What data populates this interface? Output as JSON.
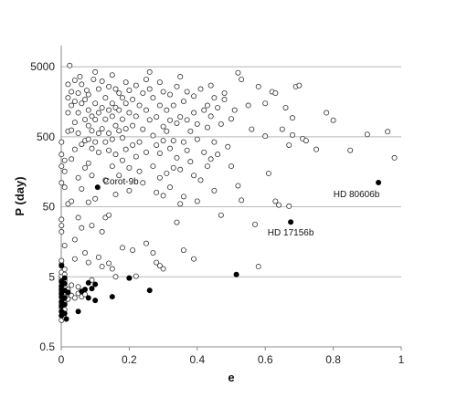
{
  "chart_data": {
    "type": "scatter",
    "title": "",
    "xlabel": "e",
    "ylabel": "P (day)",
    "xlim": [
      0,
      1
    ],
    "ylim": [
      0.5,
      10000
    ],
    "y_scale": "log",
    "grid": "horizontal",
    "x_ticks": [
      "0",
      "0.2",
      "0.4",
      "0.6",
      "0.8",
      "1"
    ],
    "x_tick_values": [
      0,
      0.2,
      0.4,
      0.6,
      0.8,
      1
    ],
    "y_ticks": [
      "0.5",
      "5",
      "50",
      "500",
      "5000"
    ],
    "y_tick_values": [
      0.5,
      5,
      50,
      500,
      5000
    ],
    "marker_colors": {
      "open": "#ffffff",
      "open_edge": "#333333",
      "filled": "#000000"
    },
    "series": [
      {
        "marker": "open-circle",
        "points": [
          [
            0.0,
            1.2
          ],
          [
            0.0,
            1.4
          ],
          [
            0.0,
            1.6
          ],
          [
            0.0,
            1.8
          ],
          [
            0.0,
            2.0
          ],
          [
            0.0,
            2.2
          ],
          [
            0.0,
            2.5
          ],
          [
            0.0,
            2.8
          ],
          [
            0.0,
            3.1
          ],
          [
            0.0,
            3.4
          ],
          [
            0.0,
            3.7
          ],
          [
            0.0,
            4.2
          ],
          [
            0.0,
            4.6
          ],
          [
            0.0,
            5.1
          ],
          [
            0.0,
            5.8
          ],
          [
            0.0,
            7.5
          ],
          [
            0.0,
            8.5
          ],
          [
            0.01,
            1.3
          ],
          [
            0.01,
            1.7
          ],
          [
            0.01,
            2.1
          ],
          [
            0.01,
            2.6
          ],
          [
            0.01,
            3.0
          ],
          [
            0.01,
            3.6
          ],
          [
            0.01,
            4.4
          ],
          [
            0.01,
            5.4
          ],
          [
            0.01,
            6.4
          ],
          [
            0.02,
            2.4
          ],
          [
            0.02,
            2.9
          ],
          [
            0.03,
            2.7
          ],
          [
            0.04,
            2.5
          ],
          [
            0.02,
            3.3
          ],
          [
            0.05,
            2.9
          ],
          [
            0.06,
            2.6
          ],
          [
            0.07,
            2.8
          ],
          [
            0.03,
            3.8
          ],
          [
            0.05,
            3.6
          ],
          [
            0.0,
            22
          ],
          [
            0.0,
            27
          ],
          [
            0.0,
            33
          ],
          [
            0.0,
            110
          ],
          [
            0.0,
            190
          ],
          [
            0.0,
            280
          ],
          [
            0.0,
            420
          ],
          [
            0.01,
            14
          ],
          [
            0.01,
            95
          ],
          [
            0.01,
            160
          ],
          [
            0.01,
            230
          ],
          [
            0.02,
            55
          ],
          [
            0.02,
            600
          ],
          [
            0.02,
            1100
          ],
          [
            0.02,
            1800
          ],
          [
            0.02,
            2800
          ],
          [
            0.025,
            5200
          ],
          [
            0.03,
            60
          ],
          [
            0.03,
            240
          ],
          [
            0.03,
            620
          ],
          [
            0.03,
            1400
          ],
          [
            0.03,
            2200
          ],
          [
            0.04,
            9
          ],
          [
            0.04,
            17
          ],
          [
            0.04,
            330
          ],
          [
            0.04,
            800
          ],
          [
            0.04,
            1600
          ],
          [
            0.04,
            3200
          ],
          [
            0.05,
            35
          ],
          [
            0.05,
            130
          ],
          [
            0.05,
            560
          ],
          [
            0.05,
            1100
          ],
          [
            0.05,
            2100
          ],
          [
            0.055,
            3600
          ],
          [
            0.06,
            25
          ],
          [
            0.06,
            90
          ],
          [
            0.06,
            390
          ],
          [
            0.06,
            1500
          ],
          [
            0.06,
            2800
          ],
          [
            0.07,
            11
          ],
          [
            0.07,
            180
          ],
          [
            0.07,
            440
          ],
          [
            0.07,
            880
          ],
          [
            0.07,
            1700
          ],
          [
            0.075,
            2300
          ],
          [
            0.08,
            8
          ],
          [
            0.08,
            58
          ],
          [
            0.08,
            210
          ],
          [
            0.08,
            460
          ],
          [
            0.08,
            720
          ],
          [
            0.08,
            1200
          ],
          [
            0.08,
            2000
          ],
          [
            0.09,
            4.5
          ],
          [
            0.09,
            27
          ],
          [
            0.09,
            140
          ],
          [
            0.09,
            340
          ],
          [
            0.09,
            610
          ],
          [
            0.09,
            980
          ],
          [
            0.095,
            3300
          ],
          [
            0.1,
            65
          ],
          [
            0.1,
            420
          ],
          [
            0.1,
            880
          ],
          [
            0.1,
            1500
          ],
          [
            0.1,
            4200
          ],
          [
            0.11,
            9.5
          ],
          [
            0.11,
            300
          ],
          [
            0.11,
            560
          ],
          [
            0.11,
            1100
          ],
          [
            0.11,
            2400
          ],
          [
            0.12,
            7
          ],
          [
            0.12,
            22
          ],
          [
            0.12,
            650
          ],
          [
            0.12,
            1300
          ],
          [
            0.12,
            3100
          ],
          [
            0.13,
            35
          ],
          [
            0.13,
            120
          ],
          [
            0.13,
            420
          ],
          [
            0.13,
            890
          ],
          [
            0.13,
            1800
          ],
          [
            0.14,
            7.8
          ],
          [
            0.14,
            38
          ],
          [
            0.14,
            320
          ],
          [
            0.14,
            560
          ],
          [
            0.14,
            1200
          ],
          [
            0.14,
            2600
          ],
          [
            0.15,
            6.5
          ],
          [
            0.15,
            190
          ],
          [
            0.15,
            460
          ],
          [
            0.15,
            980
          ],
          [
            0.15,
            1500
          ],
          [
            0.15,
            3800
          ],
          [
            0.16,
            5
          ],
          [
            0.16,
            75
          ],
          [
            0.16,
            280
          ],
          [
            0.16,
            720
          ],
          [
            0.16,
            1300
          ],
          [
            0.16,
            2400
          ],
          [
            0.17,
            140
          ],
          [
            0.17,
            610
          ],
          [
            0.17,
            1200
          ],
          [
            0.17,
            2100
          ],
          [
            0.18,
            13
          ],
          [
            0.18,
            230
          ],
          [
            0.18,
            480
          ],
          [
            0.18,
            890
          ],
          [
            0.18,
            1800
          ],
          [
            0.19,
            330
          ],
          [
            0.19,
            650
          ],
          [
            0.19,
            1500
          ],
          [
            0.19,
            3000
          ],
          [
            0.2,
            4.8
          ],
          [
            0.2,
            85
          ],
          [
            0.2,
            180
          ],
          [
            0.2,
            1100
          ],
          [
            0.2,
            2300
          ],
          [
            0.21,
            12
          ],
          [
            0.21,
            380
          ],
          [
            0.21,
            720
          ],
          [
            0.21,
            1700
          ],
          [
            0.22,
            5.1
          ],
          [
            0.22,
            260
          ],
          [
            0.22,
            980
          ],
          [
            0.22,
            2700
          ],
          [
            0.23,
            160
          ],
          [
            0.23,
            420
          ],
          [
            0.23,
            1400
          ],
          [
            0.24,
            110
          ],
          [
            0.24,
            640
          ],
          [
            0.24,
            2100
          ],
          [
            0.25,
            15
          ],
          [
            0.25,
            300
          ],
          [
            0.25,
            1200
          ],
          [
            0.25,
            3300
          ],
          [
            0.26,
            2400
          ],
          [
            0.26,
            4200
          ],
          [
            0.26,
            870
          ],
          [
            0.27,
            11
          ],
          [
            0.27,
            190
          ],
          [
            0.27,
            520
          ],
          [
            0.27,
            1800
          ],
          [
            0.28,
            8
          ],
          [
            0.28,
            80
          ],
          [
            0.28,
            380
          ],
          [
            0.28,
            960
          ],
          [
            0.29,
            7.2
          ],
          [
            0.29,
            130
          ],
          [
            0.29,
            290
          ],
          [
            0.29,
            1400
          ],
          [
            0.29,
            3000
          ],
          [
            0.3,
            6.5
          ],
          [
            0.3,
            72
          ],
          [
            0.3,
            440
          ],
          [
            0.3,
            700
          ],
          [
            0.3,
            2200
          ],
          [
            0.31,
            150
          ],
          [
            0.31,
            600
          ],
          [
            0.31,
            1200
          ],
          [
            0.32,
            95
          ],
          [
            0.32,
            340
          ],
          [
            0.32,
            860
          ],
          [
            0.32,
            2000
          ],
          [
            0.33,
            180
          ],
          [
            0.33,
            440
          ],
          [
            0.33,
            1400
          ],
          [
            0.34,
            30
          ],
          [
            0.34,
            250
          ],
          [
            0.34,
            780
          ],
          [
            0.34,
            2600
          ],
          [
            0.35,
            55
          ],
          [
            0.35,
            170
          ],
          [
            0.35,
            960
          ],
          [
            0.35,
            3600
          ],
          [
            0.36,
            12
          ],
          [
            0.36,
            70
          ],
          [
            0.36,
            420
          ],
          [
            0.36,
            1600
          ],
          [
            0.37,
            320
          ],
          [
            0.37,
            870
          ],
          [
            0.37,
            2200
          ],
          [
            0.38,
            220
          ],
          [
            0.38,
            600
          ],
          [
            0.39,
            9
          ],
          [
            0.39,
            140
          ],
          [
            0.39,
            1100
          ],
          [
            0.39,
            1900
          ],
          [
            0.4,
            60
          ],
          [
            0.4,
            460
          ],
          [
            0.4,
            760
          ],
          [
            0.41,
            120
          ],
          [
            0.41,
            2400
          ],
          [
            0.42,
            300
          ],
          [
            0.42,
            1200
          ],
          [
            0.43,
            190
          ],
          [
            0.43,
            680
          ],
          [
            0.43,
            1400
          ],
          [
            0.44,
            240
          ],
          [
            0.44,
            980
          ],
          [
            0.44,
            2700
          ],
          [
            0.45,
            85
          ],
          [
            0.45,
            420
          ],
          [
            0.45,
            1800
          ],
          [
            0.46,
            280
          ],
          [
            0.46,
            1300
          ],
          [
            0.47,
            38
          ],
          [
            0.47,
            760
          ],
          [
            0.48,
            1700
          ],
          [
            0.48,
            2100
          ],
          [
            0.49,
            360
          ],
          [
            0.5,
            190
          ],
          [
            0.5,
            900
          ],
          [
            0.51,
            1200
          ],
          [
            0.52,
            100
          ],
          [
            0.52,
            4100
          ],
          [
            0.53,
            62
          ],
          [
            0.53,
            3300
          ],
          [
            0.55,
            1400
          ],
          [
            0.56,
            640
          ],
          [
            0.57,
            28
          ],
          [
            0.58,
            2600
          ],
          [
            0.58,
            7
          ],
          [
            0.6,
            510
          ],
          [
            0.6,
            1500
          ],
          [
            0.61,
            150
          ],
          [
            0.62,
            2200
          ],
          [
            0.63,
            60
          ],
          [
            0.63,
            2100
          ],
          [
            0.64,
            53
          ],
          [
            0.65,
            640
          ],
          [
            0.66,
            1300
          ],
          [
            0.67,
            380
          ],
          [
            0.67,
            51
          ],
          [
            0.68,
            930
          ],
          [
            0.68,
            530
          ],
          [
            0.69,
            2600
          ],
          [
            0.7,
            2700
          ],
          [
            0.71,
            470
          ],
          [
            0.72,
            440
          ],
          [
            0.75,
            330
          ],
          [
            0.78,
            1100
          ],
          [
            0.8,
            860
          ],
          [
            0.85,
            320
          ],
          [
            0.9,
            540
          ],
          [
            0.96,
            590
          ],
          [
            0.98,
            250
          ]
        ]
      },
      {
        "marker": "filled-circle",
        "points": [
          [
            0.0,
            1.4
          ],
          [
            0.0,
            1.6
          ],
          [
            0.0,
            1.9
          ],
          [
            0.0,
            2.2
          ],
          [
            0.0,
            2.6
          ],
          [
            0.0,
            2.9
          ],
          [
            0.0,
            3.3
          ],
          [
            0.0,
            3.7
          ],
          [
            0.0,
            4.3
          ],
          [
            0.0,
            7.2
          ],
          [
            0.01,
            1.5
          ],
          [
            0.01,
            2.0
          ],
          [
            0.01,
            2.5
          ],
          [
            0.01,
            3.2
          ],
          [
            0.01,
            4.0
          ],
          [
            0.01,
            4.8
          ],
          [
            0.015,
            1.25
          ],
          [
            0.02,
            3.0
          ],
          [
            0.05,
            1.6
          ],
          [
            0.06,
            3.1
          ],
          [
            0.07,
            3.3
          ],
          [
            0.08,
            2.5
          ],
          [
            0.08,
            4.1
          ],
          [
            0.09,
            3.4
          ],
          [
            0.1,
            2.3
          ],
          [
            0.1,
            3.9
          ],
          [
            0.15,
            2.6
          ],
          [
            0.2,
            4.8
          ],
          [
            0.26,
            3.2
          ],
          [
            0.107,
            95,
            "Corot-9b"
          ],
          [
            0.675,
            30.3,
            "HD 17156b"
          ],
          [
            0.933,
            111,
            "HD 80606b"
          ],
          [
            0.515,
            5.4
          ]
        ]
      }
    ]
  }
}
